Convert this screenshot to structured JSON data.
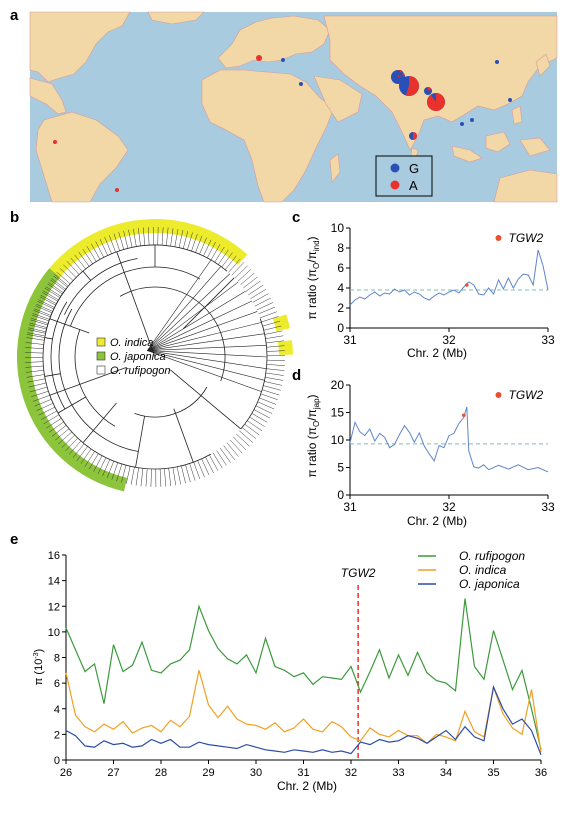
{
  "panels": {
    "a": {
      "label": "a"
    },
    "b": {
      "label": "b"
    },
    "c": {
      "label": "c"
    },
    "d": {
      "label": "d"
    },
    "e": {
      "label": "e"
    }
  },
  "colors": {
    "ocean": "#a9cbe0",
    "land": "#f2d8a7",
    "border": "#d79a9a",
    "G": "#2a4fb7",
    "A": "#e8322b",
    "indica": "#ecec2c",
    "japonica": "#8cc43c",
    "rufipogon_line": "#3c9a3c",
    "indica_line": "#f0a020",
    "japonica_line": "#2c4ca8",
    "ratio_line": "#5f86c8",
    "dashed": "#7fbfbf",
    "marker": "#e8502e"
  },
  "map": {
    "legend": [
      {
        "key": "G",
        "label": "G",
        "color": "#2a4fb7"
      },
      {
        "key": "A",
        "label": "A",
        "color": "#e8322b"
      }
    ],
    "sites": [
      {
        "name": "pie-1",
        "frac_A": 0.2
      },
      {
        "name": "pie-2",
        "frac_A": 0.55
      },
      {
        "name": "pie-3",
        "frac_A": 0.9
      },
      {
        "name": "pie-4",
        "frac_A": 0.15
      },
      {
        "name": "pie-5",
        "frac_A": 0.5
      },
      {
        "name": "pie-6",
        "frac_A": 0.1
      },
      {
        "name": "pie-7",
        "frac_A": 0.0
      },
      {
        "name": "pie-8",
        "frac_A": 1.0
      },
      {
        "name": "pie-9",
        "frac_A": 0.0
      },
      {
        "name": "pie-10",
        "frac_A": 0.0
      },
      {
        "name": "pie-11",
        "frac_A": 1.0
      },
      {
        "name": "pie-12",
        "frac_A": 0.0
      },
      {
        "name": "pie-13",
        "frac_A": 0.0
      },
      {
        "name": "pie-14",
        "frac_A": 0.0
      },
      {
        "name": "pie-15",
        "frac_A": 1.0
      }
    ]
  },
  "tree": {
    "legend": [
      {
        "label": "O. indica",
        "color": "#ecec2c"
      },
      {
        "label": "O. japonica",
        "color": "#8cc43c"
      },
      {
        "label": "O. rufipogon",
        "color": "#ffffff"
      }
    ]
  },
  "chart_data": [
    {
      "panel": "c",
      "type": "line",
      "xlabel": "Chr. 2 (Mb)",
      "ylabel": "π ratio (π",
      "ylabel_sub1": "O",
      "ylabel_mid": "/π",
      "ylabel_sub2": "ind",
      "ylabel_end": ")",
      "xlim": [
        31,
        33
      ],
      "ylim": [
        0,
        10
      ],
      "xticks": [
        "31",
        "32",
        "33"
      ],
      "yticks": [
        "0",
        "2",
        "4",
        "6",
        "8",
        "10"
      ],
      "threshold": 3.8,
      "marker": {
        "label": "TGW2",
        "x": 32.18,
        "y": 4.3
      },
      "series": [
        {
          "x": [
            31.0,
            31.05,
            31.1,
            31.15,
            31.2,
            31.25,
            31.3,
            31.35,
            31.4,
            31.45,
            31.5,
            31.55,
            31.6,
            31.65,
            31.7,
            31.75,
            31.8,
            31.85,
            31.9,
            31.95,
            32.0,
            32.05,
            32.1,
            32.15,
            32.2,
            32.25,
            32.3,
            32.35,
            32.4,
            32.45,
            32.5,
            32.55,
            32.6,
            32.65,
            32.7,
            32.75,
            32.8,
            32.85,
            32.9,
            32.95,
            33.0
          ],
          "values": [
            2.3,
            2.8,
            3.1,
            2.9,
            3.3,
            3.6,
            3.2,
            3.5,
            3.4,
            3.9,
            3.6,
            3.8,
            3.3,
            3.6,
            3.4,
            3.0,
            2.8,
            3.2,
            3.5,
            3.3,
            3.6,
            3.8,
            3.5,
            4.1,
            4.6,
            4.3,
            3.4,
            3.3,
            4.0,
            3.4,
            4.8,
            3.9,
            5.0,
            4.0,
            4.9,
            5.4,
            5.3,
            4.3,
            7.8,
            6.2,
            3.8
          ]
        }
      ]
    },
    {
      "panel": "d",
      "type": "line",
      "xlabel": "Chr. 2 (Mb)",
      "ylabel": "π ratio (π",
      "ylabel_sub1": "O",
      "ylabel_mid": "/π",
      "ylabel_sub2": "jap",
      "ylabel_end": ")",
      "xlim": [
        31,
        33
      ],
      "ylim": [
        0,
        20
      ],
      "xticks": [
        "31",
        "32",
        "33"
      ],
      "yticks": [
        "0",
        "5",
        "10",
        "15",
        "20"
      ],
      "threshold": 9.3,
      "marker": {
        "label": "TGW2",
        "x": 32.15,
        "y": 14.5
      },
      "series": [
        {
          "x": [
            31.0,
            31.05,
            31.1,
            31.15,
            31.2,
            31.25,
            31.3,
            31.35,
            31.4,
            31.45,
            31.5,
            31.55,
            31.6,
            31.65,
            31.7,
            31.75,
            31.8,
            31.85,
            31.9,
            31.95,
            32.0,
            32.05,
            32.1,
            32.15,
            32.18,
            32.2,
            32.25,
            32.3,
            32.35,
            32.4,
            32.5,
            32.6,
            32.7,
            32.8,
            32.9,
            33.0
          ],
          "values": [
            9.5,
            13.2,
            11.5,
            10.8,
            12.0,
            9.8,
            11.2,
            10.5,
            8.6,
            9.2,
            11.0,
            12.6,
            11.4,
            9.6,
            11.3,
            8.9,
            7.5,
            6.2,
            9.0,
            8.6,
            10.8,
            11.2,
            13.0,
            14.1,
            16.0,
            8.0,
            5.1,
            4.9,
            5.5,
            4.6,
            5.4,
            4.7,
            5.5,
            4.6,
            5.0,
            4.2
          ]
        }
      ]
    },
    {
      "panel": "e",
      "type": "line",
      "xlabel": "Chr. 2 (Mb)",
      "ylabel": "π (10",
      "ylabel_sup": "-3",
      "ylabel_end": ")",
      "xlim": [
        26,
        36
      ],
      "ylim": [
        0,
        16
      ],
      "xticks": [
        "26",
        "27",
        "28",
        "29",
        "30",
        "31",
        "32",
        "33",
        "34",
        "35",
        "36"
      ],
      "yticks": [
        "0",
        "2",
        "4",
        "6",
        "8",
        "10",
        "12",
        "14",
        "16"
      ],
      "marker": {
        "label": "TGW2",
        "x": 32.15
      },
      "series": [
        {
          "name": "O. rufipogon",
          "color": "#3c9a3c",
          "x": [
            26.0,
            26.2,
            26.4,
            26.6,
            26.8,
            27.0,
            27.2,
            27.4,
            27.6,
            27.8,
            28.0,
            28.2,
            28.4,
            28.6,
            28.8,
            29.0,
            29.2,
            29.4,
            29.6,
            29.8,
            30.0,
            30.2,
            30.4,
            30.6,
            30.8,
            31.0,
            31.2,
            31.4,
            31.6,
            31.8,
            32.0,
            32.2,
            32.4,
            32.6,
            32.8,
            33.0,
            33.2,
            33.4,
            33.6,
            33.8,
            34.0,
            34.2,
            34.4,
            34.6,
            34.8,
            35.0,
            35.2,
            35.4,
            35.6,
            35.8,
            36.0
          ],
          "values": [
            10.3,
            8.6,
            6.9,
            7.5,
            4.4,
            9.0,
            6.9,
            7.4,
            9.2,
            7.0,
            6.8,
            7.5,
            7.8,
            8.6,
            12.0,
            10.1,
            8.7,
            7.9,
            7.5,
            8.2,
            6.8,
            9.5,
            7.3,
            7.0,
            6.5,
            6.8,
            5.9,
            6.5,
            6.4,
            6.3,
            7.3,
            5.3,
            6.9,
            8.6,
            6.4,
            8.2,
            6.6,
            8.4,
            6.8,
            6.2,
            6.0,
            5.4,
            12.6,
            7.3,
            6.3,
            10.1,
            7.8,
            5.5,
            7.0,
            4.0,
            0.8
          ]
        },
        {
          "name": "O. indica",
          "color": "#f0a020",
          "x": [
            26.0,
            26.2,
            26.4,
            26.6,
            26.8,
            27.0,
            27.2,
            27.4,
            27.6,
            27.8,
            28.0,
            28.2,
            28.4,
            28.6,
            28.8,
            29.0,
            29.2,
            29.4,
            29.6,
            29.8,
            30.0,
            30.2,
            30.4,
            30.6,
            30.8,
            31.0,
            31.2,
            31.4,
            31.6,
            31.8,
            32.0,
            32.2,
            32.4,
            32.6,
            32.8,
            33.0,
            33.2,
            33.4,
            33.6,
            33.8,
            34.0,
            34.2,
            34.4,
            34.6,
            34.8,
            35.0,
            35.2,
            35.4,
            35.6,
            35.8,
            36.0
          ],
          "values": [
            6.8,
            3.5,
            2.6,
            2.2,
            2.8,
            2.4,
            3.0,
            2.1,
            2.5,
            2.7,
            2.2,
            3.1,
            2.6,
            3.4,
            7.0,
            4.3,
            3.3,
            4.2,
            3.2,
            2.8,
            2.7,
            2.4,
            2.9,
            2.2,
            2.5,
            3.2,
            2.4,
            2.2,
            3.0,
            2.6,
            1.8,
            1.5,
            2.5,
            2.0,
            1.8,
            2.3,
            1.9,
            1.9,
            1.3,
            2.0,
            1.8,
            1.5,
            3.8,
            2.2,
            1.8,
            5.7,
            3.6,
            2.5,
            2.0,
            5.5,
            0.6
          ]
        },
        {
          "name": "O. japonica",
          "color": "#2c4ca8",
          "x": [
            26.0,
            26.2,
            26.4,
            26.6,
            26.8,
            27.0,
            27.2,
            27.4,
            27.6,
            27.8,
            28.0,
            28.2,
            28.4,
            28.6,
            28.8,
            29.0,
            29.2,
            29.4,
            29.6,
            29.8,
            30.0,
            30.2,
            30.4,
            30.6,
            30.8,
            31.0,
            31.2,
            31.4,
            31.6,
            31.8,
            32.0,
            32.2,
            32.4,
            32.6,
            32.8,
            33.0,
            33.2,
            33.4,
            33.6,
            33.8,
            34.0,
            34.2,
            34.4,
            34.6,
            34.8,
            35.0,
            35.2,
            35.4,
            35.6,
            35.8,
            36.0
          ],
          "values": [
            2.3,
            1.9,
            1.1,
            1.0,
            1.5,
            1.2,
            1.3,
            1.0,
            1.1,
            1.6,
            1.3,
            1.6,
            1.0,
            1.0,
            1.4,
            1.2,
            1.1,
            1.0,
            0.9,
            1.2,
            1.0,
            0.8,
            0.7,
            0.6,
            0.8,
            0.7,
            0.6,
            0.8,
            0.6,
            0.7,
            0.5,
            1.4,
            1.2,
            1.6,
            1.4,
            1.5,
            1.9,
            1.7,
            1.3,
            1.8,
            2.3,
            1.6,
            2.6,
            1.8,
            1.5,
            5.7,
            4.0,
            2.8,
            3.2,
            2.3,
            0.4
          ]
        }
      ]
    }
  ]
}
